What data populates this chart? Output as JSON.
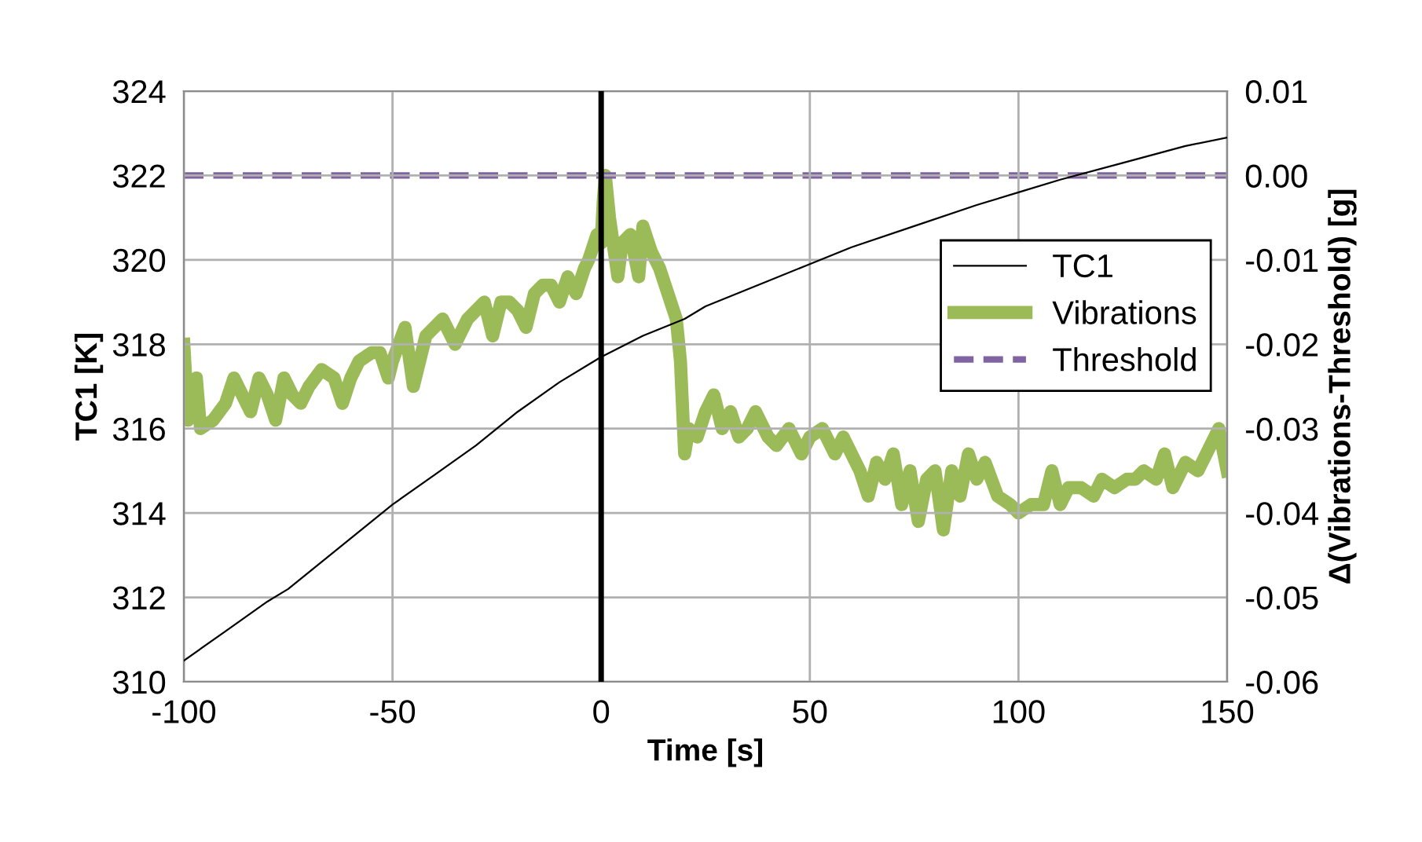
{
  "chart_data": {
    "type": "line",
    "xlabel": "Time [s]",
    "ylabel": "TC1 [K]",
    "y2label": "Δ(Vibrations-Threshold) [g]",
    "xlim": [
      -100,
      150
    ],
    "xticks": [
      -100,
      -50,
      0,
      50,
      100,
      150
    ],
    "ylim": [
      310,
      324
    ],
    "yticks": [
      310,
      312,
      314,
      316,
      318,
      320,
      322,
      324
    ],
    "y2lim": [
      -0.06,
      0.01
    ],
    "y2ticks": [
      {
        "value": -0.06,
        "label": "-0.06"
      },
      {
        "value": -0.05,
        "label": "-0.05"
      },
      {
        "value": -0.04,
        "label": "-0.04"
      },
      {
        "value": -0.03,
        "label": "-0.03"
      },
      {
        "value": -0.02,
        "label": "-0.02"
      },
      {
        "value": -0.01,
        "label": "-0.01"
      },
      {
        "value": 0,
        "label": "0.00"
      },
      {
        "value": 0.01,
        "label": "0.01"
      }
    ],
    "grid": true,
    "legend": "right",
    "ref_lines": [
      {
        "axis": "x",
        "value": 0,
        "color": "#000000"
      }
    ],
    "series": [
      {
        "name": "TC1",
        "color": "#000000",
        "line_style": "solid",
        "x": [
          -100,
          -90,
          -80,
          -75,
          -70,
          -60,
          -50,
          -40,
          -30,
          -25,
          -20,
          -10,
          0,
          10,
          20,
          25,
          30,
          40,
          50,
          60,
          75,
          90,
          100,
          110,
          125,
          140,
          150
        ],
        "values": [
          310.5,
          311.2,
          311.9,
          312.2,
          312.6,
          313.4,
          314.2,
          314.9,
          315.6,
          316.0,
          316.4,
          317.1,
          317.7,
          318.2,
          318.6,
          318.9,
          319.1,
          319.5,
          319.9,
          320.3,
          320.8,
          321.3,
          321.6,
          321.9,
          322.3,
          322.7,
          322.9
        ]
      },
      {
        "name": "Vibrations",
        "color": "#9bbb59",
        "axis": "y2",
        "line_style": "solid",
        "x": [
          -100,
          -99,
          -97,
          -96,
          -93,
          -90,
          -88,
          -86,
          -84,
          -82,
          -80,
          -78,
          -76,
          -74,
          -72,
          -70,
          -67,
          -64,
          -62,
          -60,
          -58,
          -55,
          -53,
          -51,
          -50,
          -47,
          -45,
          -42,
          -40,
          -38,
          -35,
          -32,
          -30,
          -28,
          -26,
          -24,
          -22,
          -20,
          -18,
          -16,
          -14,
          -12,
          -10,
          -8,
          -6,
          -4,
          -3,
          -1,
          0,
          0.5,
          1,
          2,
          4,
          5,
          7,
          9,
          10,
          12,
          14,
          16,
          18,
          19,
          20,
          21,
          23,
          25,
          27,
          29,
          31,
          33,
          35,
          37,
          40,
          42,
          45,
          48,
          50,
          53,
          56,
          58,
          60,
          62,
          64,
          66,
          68,
          70,
          72,
          74,
          76,
          78,
          80,
          82,
          84,
          86,
          88,
          90,
          92,
          95,
          98,
          100,
          103,
          106,
          108,
          110,
          112,
          115,
          118,
          120,
          123,
          126,
          128,
          130,
          133,
          135,
          137,
          140,
          143,
          145,
          148,
          150
        ],
        "values": [
          -0.02,
          -0.029,
          -0.024,
          -0.03,
          -0.029,
          -0.027,
          -0.024,
          -0.026,
          -0.028,
          -0.024,
          -0.026,
          -0.029,
          -0.024,
          -0.026,
          -0.027,
          -0.025,
          -0.023,
          -0.024,
          -0.027,
          -0.024,
          -0.022,
          -0.021,
          -0.021,
          -0.024,
          -0.022,
          -0.018,
          -0.025,
          -0.019,
          -0.018,
          -0.017,
          -0.02,
          -0.017,
          -0.016,
          -0.015,
          -0.019,
          -0.015,
          -0.015,
          -0.016,
          -0.018,
          -0.014,
          -0.013,
          -0.013,
          -0.015,
          -0.012,
          -0.014,
          -0.011,
          -0.01,
          -0.007,
          -0.008,
          -0.003,
          0.0,
          -0.005,
          -0.012,
          -0.008,
          -0.007,
          -0.012,
          -0.006,
          -0.009,
          -0.011,
          -0.014,
          -0.017,
          -0.022,
          -0.033,
          -0.03,
          -0.031,
          -0.028,
          -0.026,
          -0.03,
          -0.028,
          -0.031,
          -0.03,
          -0.028,
          -0.031,
          -0.032,
          -0.03,
          -0.033,
          -0.031,
          -0.03,
          -0.033,
          -0.031,
          -0.033,
          -0.035,
          -0.038,
          -0.034,
          -0.036,
          -0.033,
          -0.039,
          -0.035,
          -0.041,
          -0.036,
          -0.035,
          -0.042,
          -0.035,
          -0.038,
          -0.033,
          -0.036,
          -0.034,
          -0.038,
          -0.039,
          -0.04,
          -0.039,
          -0.039,
          -0.035,
          -0.039,
          -0.037,
          -0.037,
          -0.038,
          -0.036,
          -0.037,
          -0.036,
          -0.036,
          -0.035,
          -0.036,
          -0.033,
          -0.037,
          -0.034,
          -0.035,
          -0.033,
          -0.03,
          -0.035
        ]
      },
      {
        "name": "Threshold",
        "color": "#8064a2",
        "axis": "y2",
        "line_style": "dashed",
        "x": [
          -100,
          150
        ],
        "values": [
          0,
          0
        ]
      }
    ]
  }
}
